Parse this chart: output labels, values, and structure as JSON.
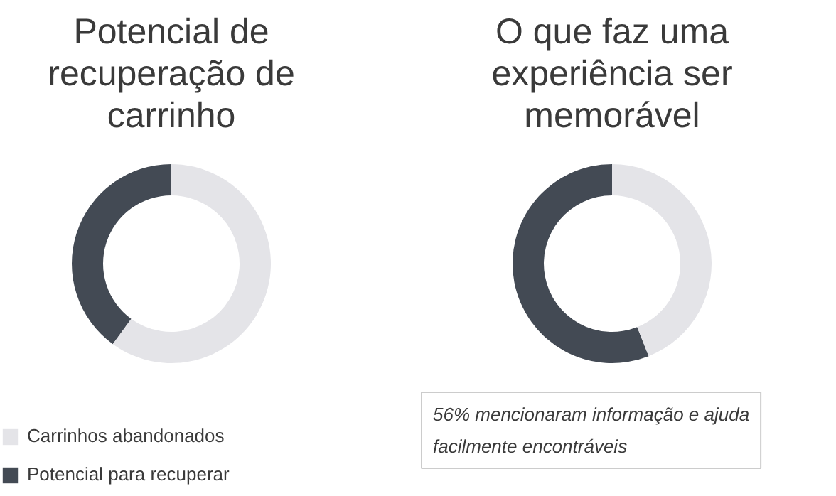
{
  "chart_data": [
    {
      "type": "donut",
      "title": "Potencial de recuperação de carrinho",
      "categories": [
        "Carrinhos abandonados",
        "Potencial para recuperar"
      ],
      "values": [
        60,
        40
      ],
      "colors": [
        "#e4e4e8",
        "#434a54"
      ],
      "legend": "bottom"
    },
    {
      "type": "donut",
      "title": "O que faz uma experiência ser memorável",
      "categories": [
        null,
        null
      ],
      "values": [
        44,
        56
      ],
      "colors": [
        "#e4e4e8",
        "#434a54"
      ],
      "annotations": [
        "56% mencionaram informação e ajuda facilmente encontráveis"
      ]
    }
  ]
}
